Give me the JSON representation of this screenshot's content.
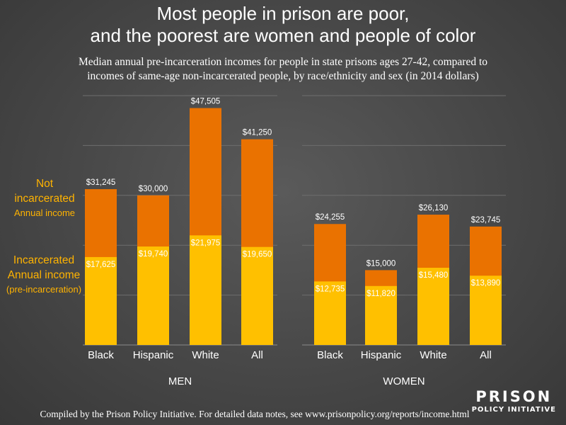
{
  "title": {
    "line1": "Most people in prison are poor,",
    "line2": "and the poorest are women and people of color"
  },
  "subtitle": {
    "line1": "Median annual pre-incarceration incomes for people in state prisons ages 27-42, compared to",
    "line2": "incomes of same-age non-incarcerated people, by race/ethnicity and sex (in 2014 dollars)"
  },
  "legend": {
    "not_incarcerated": {
      "line1": "Not",
      "line2": "incarcerated",
      "line3": "Annual income"
    },
    "incarcerated": {
      "line1": "Incarcerated",
      "line2": "Annual income",
      "line3": "(pre-incarceration)"
    }
  },
  "footer": "Compiled by the Prison Policy Initiative. For detailed data notes, see www.prisonpolicy.org/reports/income.html",
  "logo": {
    "line1": "PRISON",
    "line2": "POLICY INITIATIVE"
  },
  "colors": {
    "not_incarcerated": "#ea7200",
    "incarcerated": "#ffc000",
    "legend_text": "#ffb300",
    "gridline": "#6e6e6e"
  },
  "chart_data": [
    {
      "type": "bar",
      "group_label": "MEN",
      "categories": [
        "Black",
        "Hispanic",
        "White",
        "All"
      ],
      "series": [
        {
          "values": [
            31245,
            30000,
            47505,
            41250
          ],
          "labels": [
            "$31,245",
            "$30,000",
            "$47,505",
            "$41,250"
          ]
        },
        {
          "values": [
            17625,
            19740,
            21975,
            19650
          ],
          "labels": [
            "$17,625",
            "$19,740",
            "$21,975",
            "$19,650"
          ]
        }
      ],
      "ylim": [
        0,
        50000
      ],
      "grid": true,
      "overlay": true
    },
    {
      "type": "bar",
      "group_label": "WOMEN",
      "categories": [
        "Black",
        "Hispanic",
        "White",
        "All"
      ],
      "series": [
        {
          "values": [
            24255,
            15000,
            26130,
            23745
          ],
          "labels": [
            "$24,255",
            "$15,000",
            "$26,130",
            "$23,745"
          ]
        },
        {
          "values": [
            12735,
            11820,
            15480,
            13890
          ],
          "labels": [
            "$12,735",
            "$11,820",
            "$15,480",
            "$13,890"
          ]
        }
      ],
      "ylim": [
        0,
        50000
      ],
      "grid": true,
      "overlay": true
    }
  ]
}
